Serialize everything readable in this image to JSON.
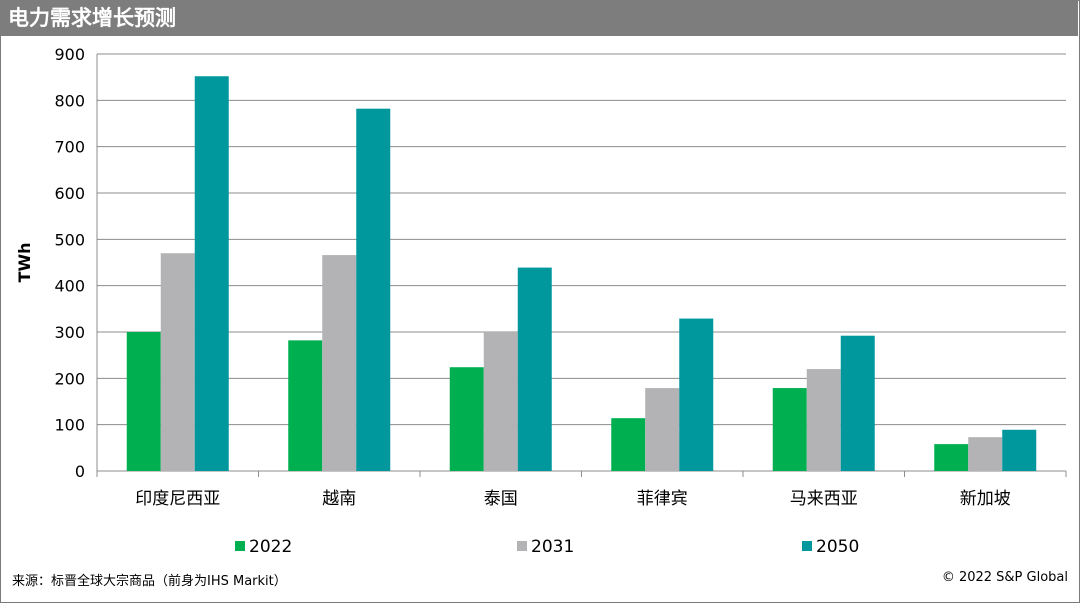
{
  "header": {
    "title": "电力需求增长预测"
  },
  "footer": {
    "source": "来源：标晋全球大宗商品（前身为IHS Markit）",
    "copyright": "© 2022 S&P Global"
  },
  "chart_data": {
    "type": "bar",
    "title": "电力需求增长预测",
    "xlabel": "",
    "ylabel": "TWh",
    "ylim": [
      0,
      900
    ],
    "yticks": [
      0,
      100,
      200,
      300,
      400,
      500,
      600,
      700,
      800,
      900
    ],
    "grid": true,
    "legend_position": "bottom",
    "categories": [
      "印度尼西亚",
      "越南",
      "泰国",
      "菲律宾",
      "马来西亚",
      "新加坡"
    ],
    "series": [
      {
        "name": "2022",
        "color": "#00b050",
        "values": [
          300,
          282,
          224,
          114,
          179,
          58
        ]
      },
      {
        "name": "2031",
        "color": "#b3b3b6",
        "values": [
          470,
          466,
          300,
          179,
          220,
          73
        ]
      },
      {
        "name": "2050",
        "color": "#00979d",
        "values": [
          852,
          782,
          439,
          329,
          292,
          89
        ]
      }
    ]
  }
}
